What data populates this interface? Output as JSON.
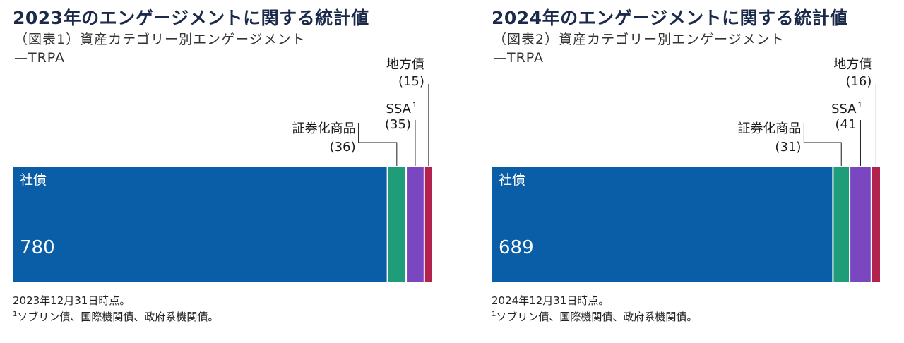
{
  "chart_data": [
    {
      "type": "bar",
      "orientation": "horizontal-stacked",
      "title": "2023年のエンゲージメントに関する統計値",
      "subtitle": "（図表1）資産カテゴリー別エンゲージメント",
      "subtitle2": "—TRPA",
      "series": [
        {
          "name": "社債",
          "value": 780,
          "value_label": "780",
          "color": "#0a5ea8"
        },
        {
          "name": "証券化商品",
          "value": 36,
          "value_label": "(36)",
          "color": "#1f9c78"
        },
        {
          "name": "SSA",
          "footnote_mark": "1",
          "value": 35,
          "value_label": "(35)",
          "color": "#7a47c0"
        },
        {
          "name": "地方債",
          "value": 15,
          "value_label": "(15)",
          "color": "#b3214f"
        }
      ],
      "footnote_line1": "2023年12月31日時点。",
      "footnote_mark": "1",
      "footnote_line2": "ソブリン債、国際機関債、政府系機関債。"
    },
    {
      "type": "bar",
      "orientation": "horizontal-stacked",
      "title": "2024年のエンゲージメントに関する統計値",
      "subtitle": "（図表2）資産カテゴリー別エンゲージメント",
      "subtitle2": "—TRPA",
      "series": [
        {
          "name": "社債",
          "value": 689,
          "value_label": "689",
          "color": "#0a5ea8"
        },
        {
          "name": "証券化商品",
          "value": 31,
          "value_label": "(31)",
          "color": "#1f9c78"
        },
        {
          "name": "SSA",
          "footnote_mark": "1",
          "value": 41,
          "value_label": "(41",
          "color": "#7a47c0"
        },
        {
          "name": "地方債",
          "value": 16,
          "value_label": "(16)",
          "color": "#b3214f"
        }
      ],
      "footnote_line1": "2024年12月31日時点。",
      "footnote_mark": "1",
      "footnote_line2": "ソブリン債、国際機関債、政府系機関債。"
    }
  ]
}
